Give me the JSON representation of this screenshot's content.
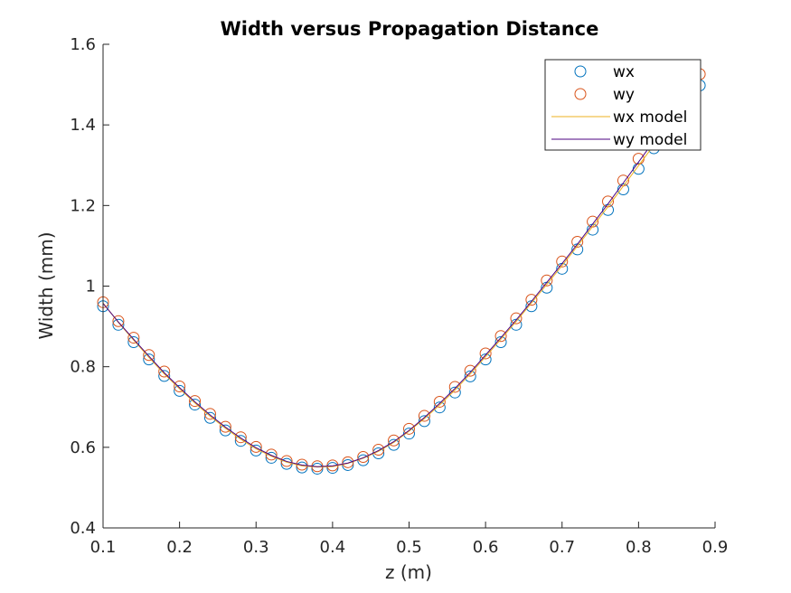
{
  "chart_data": {
    "type": "line",
    "title": "Width versus Propagation Distance",
    "xlabel": "z (m)",
    "ylabel": "Width (mm)",
    "xlim": [
      0.1,
      0.9
    ],
    "ylim": [
      0.4,
      1.6
    ],
    "x_ticks": [
      "0.1",
      "0.2",
      "0.3",
      "0.4",
      "0.5",
      "0.6",
      "0.7",
      "0.8",
      "0.9"
    ],
    "y_ticks": [
      "0.4",
      "0.6",
      "0.8",
      "1",
      "1.2",
      "1.4",
      "1.6"
    ],
    "grid": false,
    "legend_position": "top-right",
    "colors": {
      "wx": "#0072BD",
      "wy": "#D95319",
      "wx_model": "#EDB120",
      "wy_model": "#4B0082"
    },
    "x": [
      0.1,
      0.12,
      0.14,
      0.16,
      0.18,
      0.2,
      0.22,
      0.24,
      0.26,
      0.28,
      0.3,
      0.32,
      0.34,
      0.36,
      0.38,
      0.4,
      0.42,
      0.44,
      0.46,
      0.48,
      0.5,
      0.52,
      0.54,
      0.56,
      0.58,
      0.6,
      0.62,
      0.64,
      0.66,
      0.68,
      0.7,
      0.72,
      0.74,
      0.76,
      0.78,
      0.8,
      0.82,
      0.84,
      0.86,
      0.88
    ],
    "series": [
      {
        "name": "wx",
        "style": "markers",
        "values": [
          0.95,
          0.904,
          0.861,
          0.818,
          0.777,
          0.74,
          0.706,
          0.673,
          0.642,
          0.616,
          0.592,
          0.574,
          0.559,
          0.55,
          0.547,
          0.549,
          0.556,
          0.568,
          0.585,
          0.606,
          0.634,
          0.665,
          0.699,
          0.736,
          0.776,
          0.818,
          0.861,
          0.904,
          0.95,
          0.996,
          1.043,
          1.091,
          1.14,
          1.189,
          1.24,
          1.291,
          1.342,
          1.393,
          1.446,
          1.498
        ]
      },
      {
        "name": "wy",
        "style": "markers",
        "values": [
          0.96,
          0.913,
          0.872,
          0.829,
          0.788,
          0.751,
          0.715,
          0.683,
          0.651,
          0.625,
          0.601,
          0.582,
          0.566,
          0.557,
          0.553,
          0.555,
          0.563,
          0.576,
          0.594,
          0.617,
          0.646,
          0.678,
          0.713,
          0.75,
          0.79,
          0.833,
          0.876,
          0.92,
          0.966,
          1.014,
          1.061,
          1.11,
          1.16,
          1.21,
          1.262,
          1.316,
          1.368,
          1.42,
          1.474,
          1.526
        ]
      },
      {
        "name": "wx model",
        "style": "line",
        "values": [
          0.958,
          0.91,
          0.866,
          0.823,
          0.782,
          0.745,
          0.71,
          0.677,
          0.647,
          0.62,
          0.596,
          0.578,
          0.563,
          0.554,
          0.551,
          0.552,
          0.56,
          0.573,
          0.59,
          0.612,
          0.64,
          0.671,
          0.705,
          0.742,
          0.782,
          0.825,
          0.868,
          0.912,
          0.958,
          1.004,
          1.051,
          1.099,
          1.148,
          1.197,
          1.248,
          1.299,
          1.35,
          1.401,
          1.454,
          1.506
        ]
      },
      {
        "name": "wy model",
        "style": "line",
        "values": [
          0.957,
          0.911,
          0.868,
          0.826,
          0.785,
          0.748,
          0.713,
          0.68,
          0.65,
          0.623,
          0.599,
          0.58,
          0.565,
          0.556,
          0.552,
          0.554,
          0.561,
          0.574,
          0.592,
          0.614,
          0.642,
          0.674,
          0.709,
          0.746,
          0.786,
          0.829,
          0.872,
          0.916,
          0.962,
          1.009,
          1.056,
          1.104,
          1.154,
          1.204,
          1.256,
          1.308,
          1.36,
          1.412,
          1.465,
          1.518
        ]
      }
    ]
  }
}
